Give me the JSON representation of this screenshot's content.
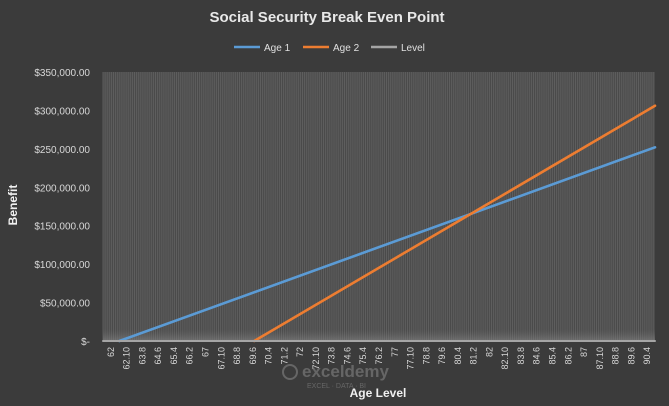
{
  "chart_data": {
    "type": "line",
    "title": "Social Security Break Even Point",
    "xlabel": "Age Level",
    "ylabel": "Benefit",
    "categories": [
      "62",
      "62.10",
      "63.8",
      "64.6",
      "65.4",
      "66.2",
      "67",
      "67.10",
      "68.8",
      "69.6",
      "70.4",
      "71.2",
      "72",
      "72.10",
      "73.8",
      "74.6",
      "75.4",
      "76.2",
      "77",
      "77.10",
      "78.8",
      "79.6",
      "80.4",
      "81.2",
      "82",
      "82.10",
      "83.8",
      "84.6",
      "85.4",
      "86.2",
      "87",
      "87.10",
      "88.8",
      "89.6",
      "90.4"
    ],
    "ylim": [
      0,
      350000
    ],
    "yticks": [
      "$-",
      "$50,000.00",
      "$100,000.00",
      "$150,000.00",
      "$200,000.00",
      "$250,000.00",
      "$300,000.00",
      "$350,000.00"
    ],
    "series": [
      {
        "name": "Age 1",
        "color": "#5b9bd5",
        "start_age": 62.83,
        "end_age": 90.83,
        "start_value": 0,
        "end_value": 252000
      },
      {
        "name": "Age 2",
        "color": "#ed7d31",
        "start_age": 69.67,
        "end_age": 90.83,
        "start_value": 0,
        "end_value": 306000
      },
      {
        "name": "Level",
        "color": "#a5a5a5",
        "start_age": 62,
        "end_age": 90.83,
        "start_value": 0,
        "end_value": 0
      }
    ],
    "grid": true,
    "legend": "top"
  },
  "watermark": {
    "name": "exceldemy",
    "tagline": "EXCEL · DATA · BI"
  }
}
